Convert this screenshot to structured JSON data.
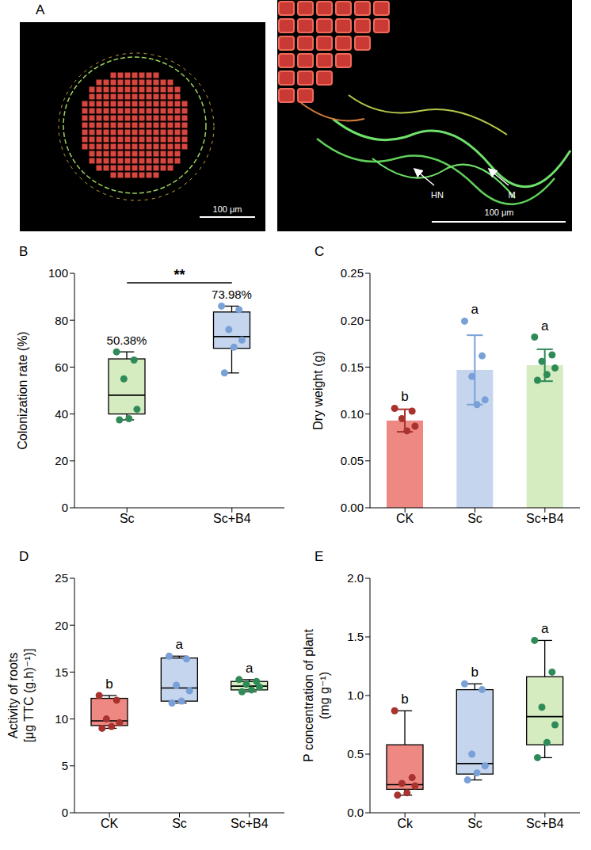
{
  "chart_data": [
    {
      "panel": "A",
      "type": "image",
      "images": [
        {
          "scale_bar": "100 μm"
        },
        {
          "scale_bar": "100 μm",
          "annotations": [
            "HN",
            "M"
          ]
        }
      ]
    },
    {
      "panel": "B",
      "type": "box",
      "categories": [
        "Sc",
        "Sc+B4"
      ],
      "y_label": [
        "Colonization rate (%)"
      ],
      "ylim": [
        0,
        100
      ],
      "yticks": [
        0,
        20,
        40,
        60,
        80,
        100
      ],
      "boxes": [
        {
          "min": 37.5,
          "q1": 40,
          "median": 48,
          "q3": 63.5,
          "max": 66.5,
          "points": [
            66.5,
            63,
            55,
            42,
            38,
            37.5
          ]
        },
        {
          "min": 57.5,
          "q1": 68,
          "median": 73,
          "q3": 83.5,
          "max": 86,
          "points": [
            86,
            84.5,
            76,
            71.5,
            68.5,
            57.5
          ]
        }
      ],
      "mean_labels": [
        "50.38%",
        "73.98%"
      ],
      "significance": {
        "between": [
          "Sc",
          "Sc+B4"
        ],
        "label": "**"
      },
      "colors": [
        "#d5ebc0",
        "#c5d5ee"
      ],
      "point_colors": [
        "#2e8b57",
        "#7aa0d8"
      ]
    },
    {
      "panel": "C",
      "type": "bar",
      "categories": [
        "CK",
        "Sc",
        "Sc+B4"
      ],
      "y_label": [
        "Dry weight (g)"
      ],
      "ylim": [
        0,
        0.25
      ],
      "yticks": [
        {
          "value": 0,
          "label": "0.00"
        },
        {
          "value": 0.05,
          "label": "0.05"
        },
        {
          "value": 0.1,
          "label": "0.10"
        },
        {
          "value": 0.15,
          "label": "0.15"
        },
        {
          "value": 0.2,
          "label": "0.20"
        },
        {
          "value": 0.25,
          "label": "0.25"
        }
      ],
      "values": [
        0.093,
        0.147,
        0.152
      ],
      "errors": [
        0.012,
        0.037,
        0.017
      ],
      "points": [
        [
          0.106,
          0.103,
          0.095,
          0.087,
          0.082
        ],
        [
          0.199,
          0.162,
          0.14,
          0.115,
          0.11
        ],
        [
          0.182,
          0.163,
          0.156,
          0.149,
          0.142,
          0.136
        ]
      ],
      "letters": [
        "b",
        "a",
        "a"
      ],
      "colors": [
        "#ee8883",
        "#c5d5ee",
        "#d5ebc0"
      ],
      "point_colors": [
        "#a8322d",
        "#7aa0d8",
        "#2e8b57"
      ]
    },
    {
      "panel": "D",
      "type": "box",
      "categories": [
        "CK",
        "Sc",
        "Sc+B4"
      ],
      "y_label": [
        "Activity of roots",
        "[μg TTC (g.h)⁻¹)]"
      ],
      "ylim": [
        0,
        25
      ],
      "yticks": [
        0,
        5,
        10,
        15,
        20,
        25
      ],
      "boxes": [
        {
          "min": 9,
          "q1": 9.3,
          "median": 9.8,
          "q3": 12.2,
          "max": 12.5,
          "points": [
            12.5,
            12,
            10,
            9.6,
            9.2,
            9
          ]
        },
        {
          "min": 11.7,
          "q1": 11.9,
          "median": 13.3,
          "q3": 16.5,
          "max": 16.7,
          "points": [
            16.7,
            16.4,
            13.6,
            13,
            11.9,
            11.7
          ]
        },
        {
          "min": 12.9,
          "q1": 13.1,
          "median": 13.5,
          "q3": 14,
          "max": 14.2,
          "points": [
            14.2,
            14,
            13.7,
            13.4,
            13.1,
            12.9
          ]
        }
      ],
      "letters": [
        "b",
        "a",
        "a"
      ],
      "colors": [
        "#ee8883",
        "#c5d5ee",
        "#d5ebc0"
      ],
      "point_colors": [
        "#a8322d",
        "#7aa0d8",
        "#2e8b57"
      ]
    },
    {
      "panel": "E",
      "type": "box",
      "categories": [
        "Ck",
        "Sc",
        "Sc+B4"
      ],
      "y_label": [
        "P concentration of plant",
        "(mg g⁻¹)"
      ],
      "ylim": [
        0,
        2
      ],
      "yticks": [
        {
          "value": 0,
          "label": "0.0"
        },
        {
          "value": 0.5,
          "label": "0.5"
        },
        {
          "value": 1,
          "label": "1.0"
        },
        {
          "value": 1.5,
          "label": "1.5"
        },
        {
          "value": 2,
          "label": "2.0"
        }
      ],
      "boxes": [
        {
          "min": 0.15,
          "q1": 0.2,
          "median": 0.24,
          "q3": 0.58,
          "max": 0.87,
          "points": [
            0.87,
            0.3,
            0.25,
            0.23,
            0.17,
            0.15
          ]
        },
        {
          "min": 0.28,
          "q1": 0.33,
          "median": 0.42,
          "q3": 1.05,
          "max": 1.1,
          "points": [
            1.1,
            1.05,
            0.5,
            0.4,
            0.34,
            0.28
          ]
        },
        {
          "min": 0.47,
          "q1": 0.58,
          "median": 0.82,
          "q3": 1.16,
          "max": 1.47,
          "points": [
            1.47,
            1.2,
            0.9,
            0.75,
            0.6,
            0.47
          ]
        }
      ],
      "letters": [
        "b",
        "b",
        "a"
      ],
      "colors": [
        "#ee8883",
        "#c5d5ee",
        "#d5ebc0"
      ],
      "point_colors": [
        "#a8322d",
        "#7aa0d8",
        "#2e8b57"
      ]
    }
  ]
}
